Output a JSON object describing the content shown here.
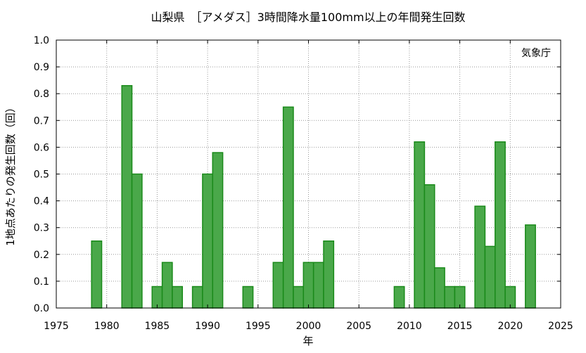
{
  "chart_data": {
    "type": "bar",
    "title": "山梨県　［アメダス］3時間降水量100mm以上の年間発生回数",
    "xlabel": "年",
    "ylabel": "1地点あたりの発生回数（回）",
    "source_label": "気象庁",
    "xlim": [
      1975,
      2025
    ],
    "ylim": [
      0,
      1.0
    ],
    "x_ticks": [
      "1975",
      "1980",
      "1985",
      "1990",
      "1995",
      "2000",
      "2005",
      "2010",
      "2015",
      "2020",
      "2025"
    ],
    "y_ticks": [
      "0.0",
      "0.1",
      "0.2",
      "0.3",
      "0.4",
      "0.5",
      "0.6",
      "0.7",
      "0.8",
      "0.9",
      "1.0"
    ],
    "grid": true,
    "bar_color": "#4aa84a",
    "bar_edge_color": "#1a8a1a",
    "bars": [
      {
        "year": 1979,
        "value": 0.25
      },
      {
        "year": 1982,
        "value": 0.83
      },
      {
        "year": 1983,
        "value": 0.5
      },
      {
        "year": 1985,
        "value": 0.08
      },
      {
        "year": 1986,
        "value": 0.17
      },
      {
        "year": 1987,
        "value": 0.08
      },
      {
        "year": 1989,
        "value": 0.08
      },
      {
        "year": 1990,
        "value": 0.5
      },
      {
        "year": 1991,
        "value": 0.58
      },
      {
        "year": 1994,
        "value": 0.08
      },
      {
        "year": 1997,
        "value": 0.17
      },
      {
        "year": 1998,
        "value": 0.75
      },
      {
        "year": 1999,
        "value": 0.08
      },
      {
        "year": 2000,
        "value": 0.17
      },
      {
        "year": 2001,
        "value": 0.17
      },
      {
        "year": 2002,
        "value": 0.25
      },
      {
        "year": 2009,
        "value": 0.08
      },
      {
        "year": 2011,
        "value": 0.62
      },
      {
        "year": 2012,
        "value": 0.46
      },
      {
        "year": 2013,
        "value": 0.15
      },
      {
        "year": 2014,
        "value": 0.08
      },
      {
        "year": 2015,
        "value": 0.08
      },
      {
        "year": 2017,
        "value": 0.38
      },
      {
        "year": 2018,
        "value": 0.23
      },
      {
        "year": 2019,
        "value": 0.62
      },
      {
        "year": 2020,
        "value": 0.08
      },
      {
        "year": 2022,
        "value": 0.31
      }
    ]
  }
}
